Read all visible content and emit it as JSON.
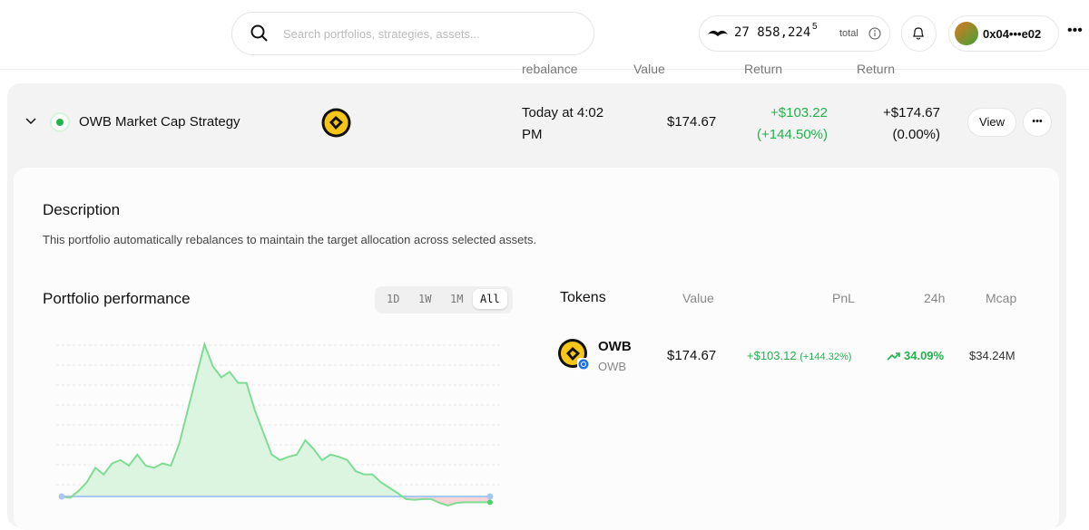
{
  "header": {
    "search_placeholder": "Search portfolios, strategies, assets...",
    "balance": "27 858,224",
    "balance_sup": "5",
    "balance_label": "total",
    "account": "0x04•••e02"
  },
  "columns": [
    "rebalance",
    "Value",
    "Return",
    "Return"
  ],
  "strategy": {
    "name": "OWB Market Cap Strategy",
    "rebalance": "Today at 4:02 PM",
    "value": "$174.67",
    "return": "+$103.22",
    "return_pct": "(+144.50%)",
    "return2": "+$174.67",
    "return2_pct": "(0.00%)",
    "view": "View"
  },
  "description": {
    "title": "Description",
    "text": "This portfolio automatically rebalances to maintain the target allocation across selected assets."
  },
  "performance": {
    "title": "Portfolio performance",
    "ranges": [
      "1D",
      "1W",
      "1M",
      "All"
    ],
    "selected_range": "All",
    "chart_data": {
      "type": "line",
      "values": [
        0,
        -2,
        5,
        13,
        26,
        20,
        30,
        33,
        28,
        38,
        28,
        26,
        30,
        28,
        48,
        78,
        108,
        138,
        118,
        108,
        113,
        103,
        103,
        78,
        58,
        38,
        33,
        36,
        38,
        51,
        43,
        33,
        38,
        36,
        33,
        23,
        20,
        20,
        13,
        8,
        3,
        -4,
        -5,
        -4,
        -4,
        -10,
        -14,
        -10,
        -9,
        -9,
        -9,
        -9
      ],
      "color": "#7fdc94"
    }
  },
  "tokens": {
    "headers": [
      "Tokens",
      "Value",
      "PnL",
      "24h",
      "Mcap"
    ],
    "rows": [
      {
        "symbol": "OWB",
        "name": "OWB",
        "value": "$174.67",
        "pnl": "+$103.12",
        "pnl_pct": "(+144.32%)",
        "change_24h": "34.09%",
        "mcap": "$34.24M"
      }
    ]
  }
}
